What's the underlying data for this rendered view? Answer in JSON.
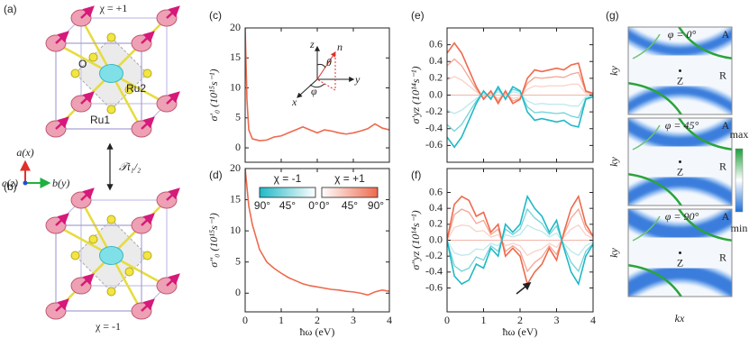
{
  "structures": {
    "a": {
      "label": "(a)",
      "chirality": "χ = +1",
      "atoms": [
        "O",
        "Ru2",
        "Ru1"
      ]
    },
    "axes": [
      "a(x)",
      "c(z)",
      "b(y)"
    ],
    "operation": "𝒯t₁/₂",
    "b": {
      "label": "(b)",
      "chirality": "χ = -1"
    }
  },
  "chart_data": [
    {
      "type": "line",
      "panel_label": "(c)",
      "ylabel": "σ′₀ (10¹⁵s⁻¹)",
      "x": [
        0,
        0.05,
        0.1,
        0.2,
        0.4,
        0.6,
        0.8,
        1.0,
        1.2,
        1.4,
        1.6,
        1.8,
        2.0,
        2.2,
        2.4,
        2.6,
        2.8,
        3.0,
        3.2,
        3.4,
        3.6,
        3.8,
        4.0
      ],
      "series": [
        {
          "color": "#ee6a4d",
          "values": [
            20,
            8,
            3,
            1.5,
            1.2,
            1.3,
            1.8,
            2.0,
            2.5,
            3.0,
            3.5,
            3.0,
            2.5,
            3.0,
            2.8,
            2.5,
            2.3,
            2.5,
            2.8,
            3.2,
            4.0,
            3.3,
            3.0
          ]
        }
      ],
      "xlim": [
        0,
        4
      ],
      "xticks": [
        0,
        1,
        2,
        3,
        4
      ],
      "ylim": [
        -2.4,
        20
      ],
      "yticks": [
        0,
        5,
        10,
        15,
        20
      ],
      "inset_labels": [
        "z",
        "n",
        "θ",
        "y",
        "φ",
        "x"
      ]
    },
    {
      "type": "line",
      "panel_label": "(d)",
      "ylabel": "σ″₀ (10¹⁵s⁻¹)",
      "xlabel": "ħω (eV)",
      "x": [
        0,
        0.05,
        0.1,
        0.2,
        0.4,
        0.6,
        0.8,
        1.0,
        1.2,
        1.4,
        1.6,
        1.8,
        2.0,
        2.2,
        2.4,
        2.6,
        2.8,
        3.0,
        3.2,
        3.4,
        3.6,
        3.8,
        4.0
      ],
      "series": [
        {
          "color": "#ee6a4d",
          "values": [
            20,
            17,
            14,
            11,
            7,
            5,
            4,
            3.2,
            2.5,
            2.0,
            1.5,
            1.2,
            1.0,
            0.8,
            0.6,
            0.5,
            0.3,
            0.2,
            0,
            -0.3,
            0.2,
            0.5,
            0.3
          ]
        }
      ],
      "xlim": [
        0,
        4
      ],
      "xticks": [
        0,
        1,
        2,
        3,
        4
      ],
      "ylim": [
        -3,
        20
      ],
      "yticks": [
        0,
        5,
        10,
        15,
        20
      ],
      "legend": {
        "titles": [
          "χ = -1",
          "χ = +1"
        ],
        "ticks": [
          "90°",
          "45°",
          "0°",
          "0°",
          "45°",
          "90°"
        ],
        "colors": [
          "#1fb9c6",
          "#ffffff",
          "#ee6a4d"
        ]
      }
    },
    {
      "type": "line",
      "panel_label": "(e)",
      "ylabel": "σ′yz (10¹⁴s⁻¹)",
      "x": [
        0,
        0.2,
        0.4,
        0.6,
        0.8,
        1.0,
        1.2,
        1.4,
        1.6,
        1.8,
        2.0,
        2.2,
        2.4,
        2.6,
        2.8,
        3.0,
        3.2,
        3.4,
        3.6,
        3.8,
        4.0
      ],
      "series": [
        {
          "color": "#f9d2c8",
          "values": [
            0.18,
            0.22,
            0.18,
            0.11,
            0.04,
            -0.02,
            0.02,
            -0.04,
            0.02,
            -0.04,
            -0.02,
            0.07,
            0.11,
            0.1,
            0.11,
            0.11,
            0.11,
            0.13,
            0.13,
            0.02,
            0.01
          ]
        },
        {
          "color": "#bde9ec",
          "values": [
            -0.18,
            -0.22,
            -0.18,
            -0.11,
            -0.04,
            0.02,
            -0.02,
            0.04,
            -0.02,
            0.04,
            0.02,
            -0.07,
            -0.11,
            -0.1,
            -0.11,
            -0.11,
            -0.11,
            -0.13,
            -0.13,
            -0.02,
            -0.01
          ]
        },
        {
          "color": "#f4a592",
          "values": [
            0.35,
            0.43,
            0.35,
            0.21,
            0.07,
            -0.04,
            0.04,
            -0.07,
            0.04,
            -0.07,
            -0.04,
            0.14,
            0.21,
            0.2,
            0.21,
            0.22,
            0.21,
            0.25,
            0.27,
            0.04,
            0.01
          ]
        },
        {
          "color": "#72d3da",
          "values": [
            -0.35,
            -0.43,
            -0.35,
            -0.21,
            -0.07,
            0.04,
            -0.04,
            0.07,
            -0.04,
            0.07,
            0.04,
            -0.14,
            -0.21,
            -0.2,
            -0.21,
            -0.22,
            -0.21,
            -0.25,
            -0.27,
            -0.04,
            -0.01
          ]
        },
        {
          "color": "#ee6a4d",
          "values": [
            0.5,
            0.62,
            0.5,
            0.3,
            0.1,
            -0.05,
            0.05,
            -0.1,
            0.05,
            -0.1,
            -0.05,
            0.2,
            0.3,
            0.28,
            0.3,
            0.32,
            0.3,
            0.36,
            0.38,
            0.05,
            0.02
          ]
        },
        {
          "color": "#1fb9c6",
          "values": [
            -0.5,
            -0.62,
            -0.5,
            -0.3,
            -0.1,
            0.05,
            -0.05,
            0.1,
            -0.05,
            0.1,
            0.05,
            -0.2,
            -0.3,
            -0.28,
            -0.3,
            -0.32,
            -0.3,
            -0.36,
            -0.38,
            -0.05,
            -0.02
          ]
        }
      ],
      "xlim": [
        0,
        4
      ],
      "xticks": [
        0,
        1,
        2,
        3,
        4
      ],
      "ylim": [
        -0.8,
        0.8
      ],
      "yticks": [
        -0.6,
        -0.4,
        -0.2,
        {
          "value": 0,
          "label": "0.0"
        },
        0.2,
        0.4,
        0.6
      ]
    },
    {
      "type": "line",
      "panel_label": "(f)",
      "ylabel": "σ″yz (10¹⁴s⁻¹)",
      "xlabel": "ħω (eV)",
      "x": [
        0,
        0.2,
        0.4,
        0.6,
        0.8,
        1.0,
        1.2,
        1.4,
        1.6,
        1.8,
        2.0,
        2.2,
        2.4,
        2.6,
        2.8,
        3.0,
        3.2,
        3.4,
        3.6,
        3.8,
        4.0
      ],
      "series": [
        {
          "color": "#f9d2c8",
          "values": [
            0,
            0.16,
            0.19,
            0.18,
            0.11,
            0.12,
            0.04,
            0.07,
            -0.07,
            -0.04,
            -0.07,
            -0.19,
            -0.14,
            -0.11,
            -0.04,
            -0.09,
            0.04,
            0.14,
            0.19,
            0.07,
            0.02
          ]
        },
        {
          "color": "#bde9ec",
          "values": [
            0,
            -0.16,
            -0.19,
            -0.18,
            -0.11,
            -0.12,
            -0.04,
            -0.07,
            0.07,
            0.04,
            0.07,
            0.19,
            0.14,
            0.11,
            0.04,
            0.09,
            -0.04,
            -0.14,
            -0.19,
            -0.07,
            -0.02
          ]
        },
        {
          "color": "#f4a592",
          "values": [
            0,
            0.32,
            0.39,
            0.35,
            0.21,
            0.25,
            0.07,
            0.14,
            -0.14,
            -0.07,
            -0.14,
            -0.39,
            -0.28,
            -0.21,
            -0.07,
            -0.18,
            0.07,
            0.28,
            0.39,
            0.14,
            0.04
          ]
        },
        {
          "color": "#72d3da",
          "values": [
            0,
            -0.32,
            -0.39,
            -0.35,
            -0.21,
            -0.25,
            -0.07,
            -0.14,
            0.14,
            0.07,
            0.14,
            0.39,
            0.28,
            0.21,
            0.07,
            0.18,
            -0.07,
            -0.28,
            -0.39,
            -0.14,
            -0.04
          ]
        },
        {
          "color": "#ee6a4d",
          "values": [
            0,
            0.45,
            0.55,
            0.5,
            0.3,
            0.35,
            0.1,
            0.2,
            -0.2,
            -0.1,
            -0.2,
            -0.55,
            -0.4,
            -0.3,
            -0.1,
            -0.25,
            0.1,
            0.4,
            0.55,
            0.2,
            0.05
          ]
        },
        {
          "color": "#1fb9c6",
          "values": [
            0,
            -0.45,
            -0.55,
            -0.5,
            -0.3,
            -0.35,
            -0.1,
            -0.2,
            0.2,
            0.1,
            0.2,
            0.55,
            0.4,
            0.3,
            0.1,
            0.25,
            -0.1,
            -0.4,
            -0.55,
            -0.2,
            -0.05
          ]
        }
      ],
      "xlim": [
        0,
        4
      ],
      "xticks": [
        0,
        1,
        2,
        3,
        4
      ],
      "ylim": [
        -0.9,
        0.9
      ],
      "yticks": [
        -0.6,
        -0.4,
        -0.2,
        {
          "value": 0,
          "label": "0.0"
        },
        0.2,
        0.4,
        0.6
      ]
    }
  ],
  "maps": {
    "label": "(g)",
    "panels": [
      {
        "phi": "φ = 0°",
        "labels": [
          "A",
          "R",
          "Z"
        ]
      },
      {
        "phi": "φ = 45°",
        "labels": [
          "A",
          "R",
          "Z"
        ]
      },
      {
        "phi": "φ = 90°",
        "labels": [
          "A",
          "R",
          "Z"
        ]
      }
    ],
    "ylabel": "ky",
    "xlabel": "kx",
    "colorbar": [
      "max",
      "min"
    ]
  }
}
